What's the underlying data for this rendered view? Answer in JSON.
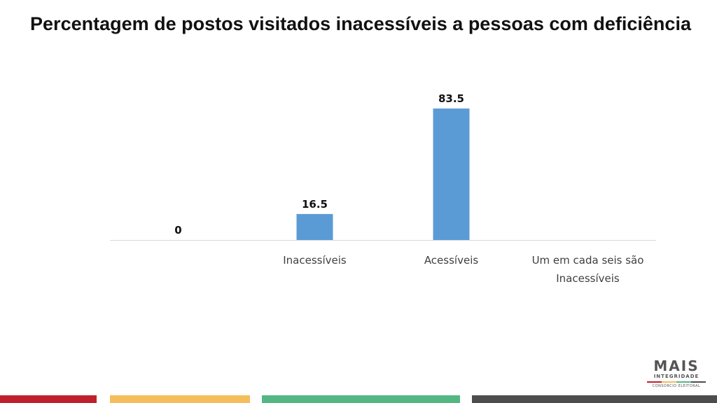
{
  "chart_data": {
    "type": "bar",
    "title": "Percentagem de postos visitados inacessíveis a pessoas com deficiência",
    "categories": [
      "",
      "Inacessíveis",
      "Acessíveis",
      "Um em cada seis são Inacessíveis"
    ],
    "values": [
      0,
      16.5,
      83.5,
      null
    ],
    "data_labels": [
      "0",
      "16.5",
      "83.5",
      ""
    ],
    "xlabel": "",
    "ylabel": "",
    "ylim": [
      0,
      100
    ],
    "grid": false,
    "legend": "none",
    "colors": {
      "bar": "#5B9BD5",
      "axis": "#D9D9D9",
      "text": "#404040",
      "label": "#111111"
    }
  },
  "logo": {
    "main": "MAIS",
    "sub": "INTEGRIDADE",
    "small": "CONSÓRCIO ELEITORAL"
  },
  "colors": {
    "red": "#C0202E",
    "yellow": "#F5BE5C",
    "green": "#54B783",
    "gray": "#4D4D4D"
  }
}
